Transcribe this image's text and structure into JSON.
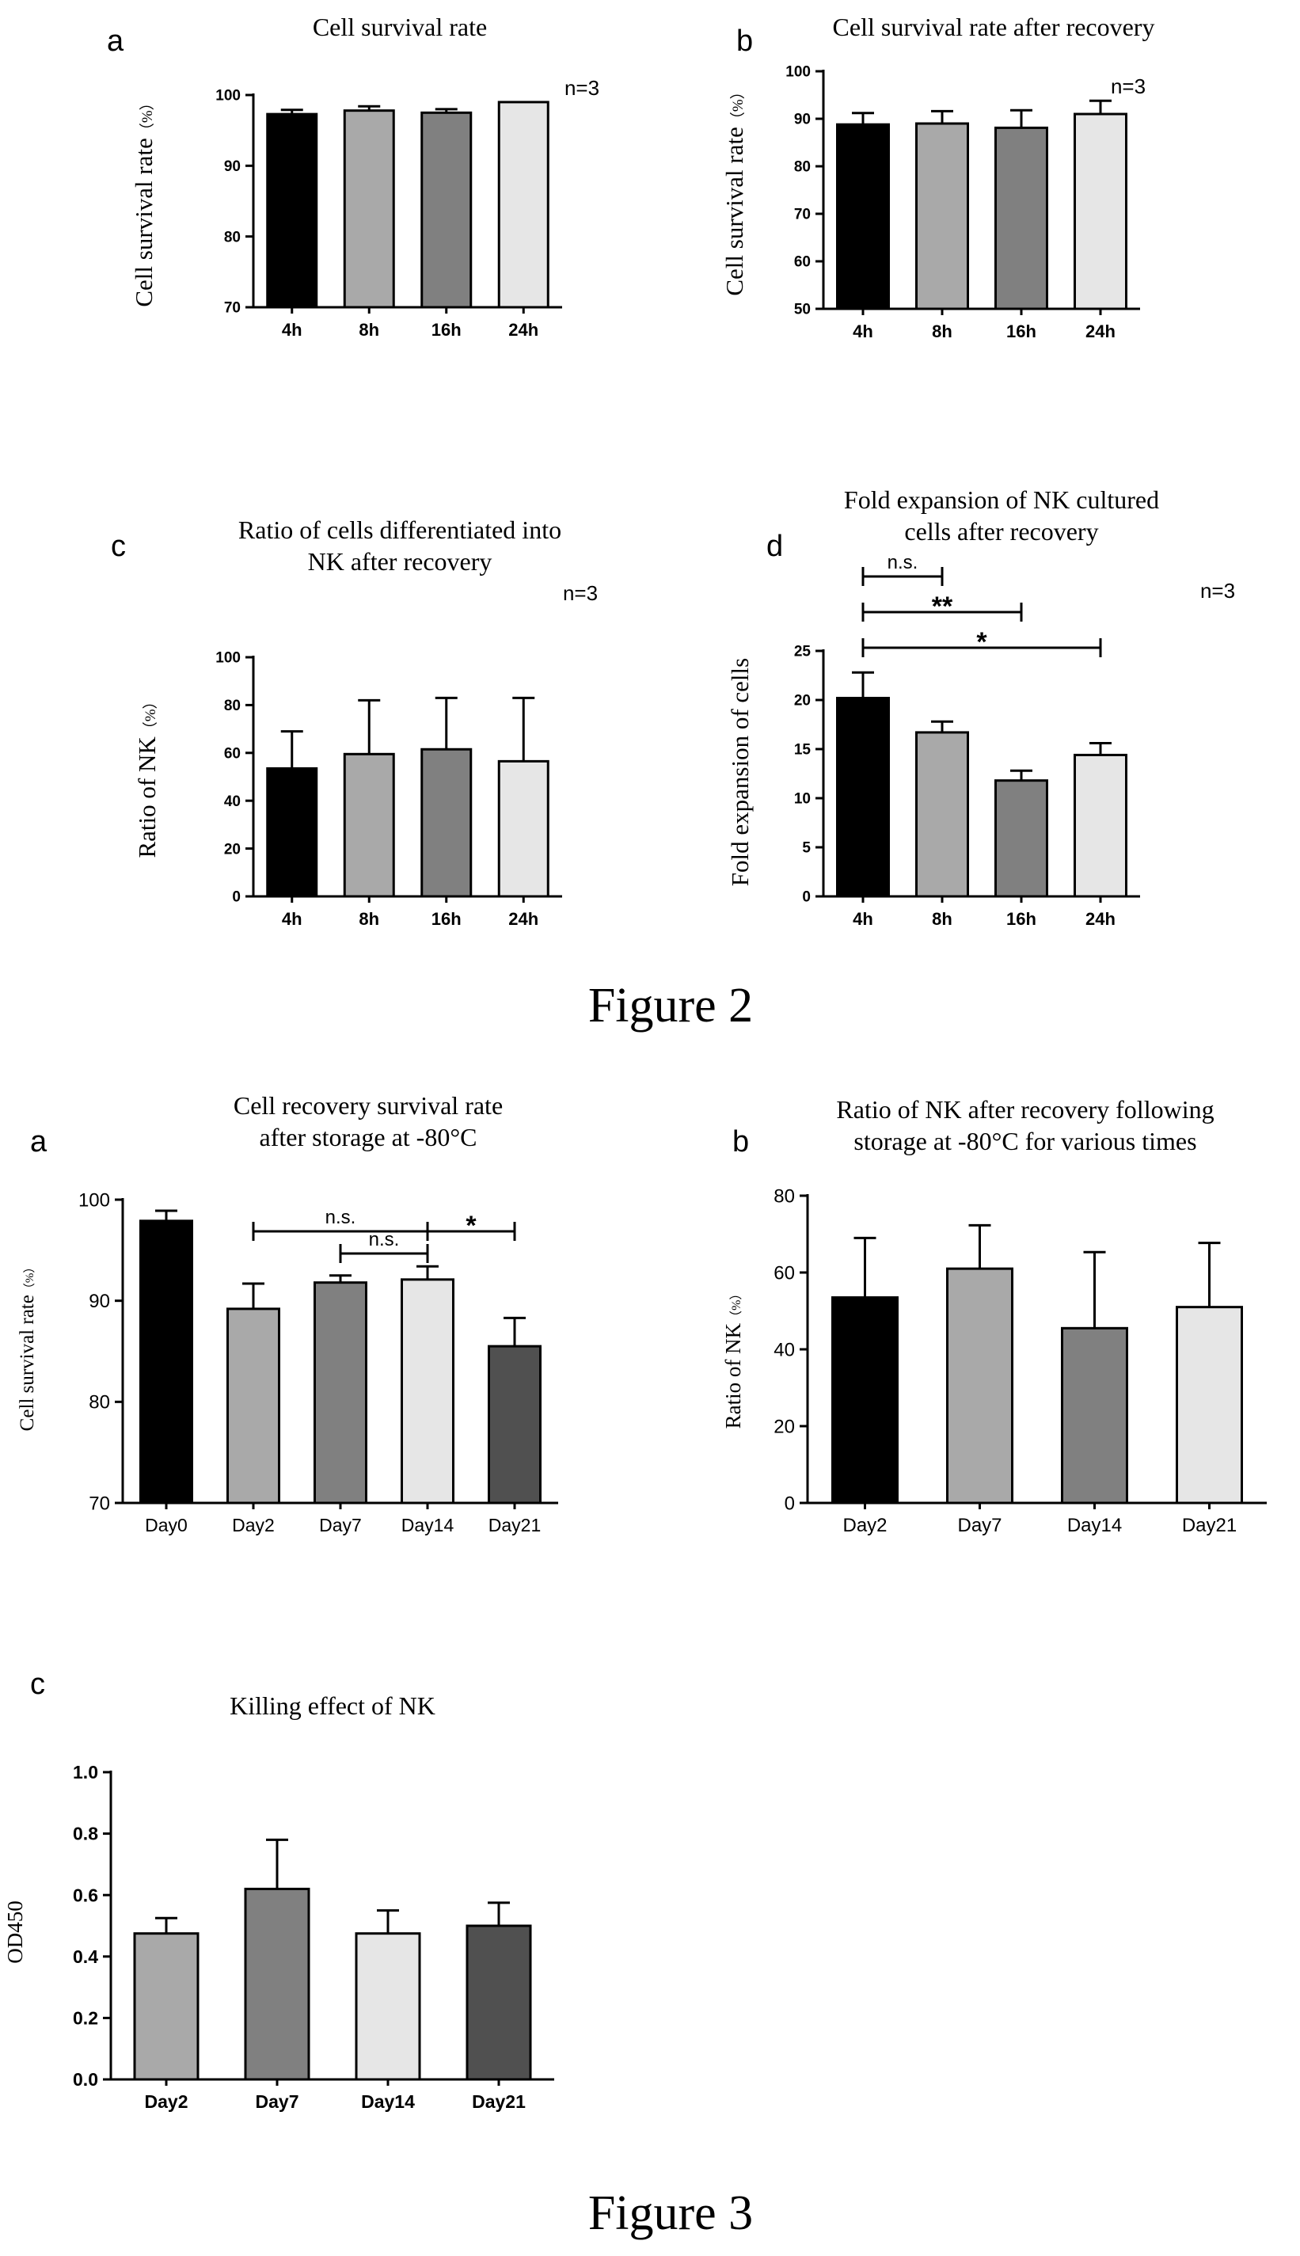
{
  "figure_captions": [
    "Figure 2",
    "Figure 3"
  ],
  "chart_data": [
    {
      "panel_letter": "a",
      "type": "bar",
      "title": [
        "Cell survival rate"
      ],
      "n_label": "n=3",
      "ylabel": "Cell survival rate",
      "ylabel_unit": "（%）",
      "categories": [
        "4h",
        "8h",
        "16h",
        "24h"
      ],
      "values": [
        97.3,
        97.8,
        97.5,
        99.0
      ],
      "errors": [
        0.6,
        0.6,
        0.5,
        0
      ],
      "ylim": [
        70,
        100
      ],
      "yticks": [
        "70",
        "80",
        "90",
        "100"
      ],
      "colors": [
        "#000000",
        "#a9a9a9",
        "#808080",
        "#e6e6e6"
      ],
      "significance": []
    },
    {
      "panel_letter": "b",
      "type": "bar",
      "title": [
        "Cell survival rate after recovery"
      ],
      "n_label": "n=3",
      "ylabel": "Cell survival rate",
      "ylabel_unit": "（%）",
      "categories": [
        "4h",
        "8h",
        "16h",
        "24h"
      ],
      "values": [
        88.8,
        89.0,
        88.1,
        91.0
      ],
      "errors": [
        2.4,
        2.6,
        3.7,
        2.8
      ],
      "ylim": [
        50,
        100
      ],
      "yticks": [
        "50",
        "60",
        "70",
        "80",
        "90",
        "100"
      ],
      "colors": [
        "#000000",
        "#a9a9a9",
        "#808080",
        "#e6e6e6"
      ],
      "significance": []
    },
    {
      "panel_letter": "c",
      "type": "bar",
      "title": [
        "Ratio of cells differentiated into",
        "NK after recovery"
      ],
      "n_label": "n=3",
      "ylabel": "Ratio of NK",
      "ylabel_unit": "（%）",
      "categories": [
        "4h",
        "8h",
        "16h",
        "24h"
      ],
      "values": [
        53.5,
        59.5,
        61.5,
        56.5
      ],
      "errors": [
        15.5,
        22.5,
        21.5,
        26.5
      ],
      "ylim": [
        0,
        100
      ],
      "yticks": [
        "0",
        "20",
        "40",
        "60",
        "80",
        "100"
      ],
      "colors": [
        "#000000",
        "#a9a9a9",
        "#808080",
        "#e6e6e6"
      ],
      "significance": []
    },
    {
      "panel_letter": "d",
      "type": "bar",
      "title": [
        "Fold expansion of NK cultured",
        "cells after recovery"
      ],
      "n_label": "n=3",
      "ylabel": "Fold expansion of cells",
      "ylabel_unit": "",
      "categories": [
        "4h",
        "8h",
        "16h",
        "24h"
      ],
      "values": [
        20.2,
        16.7,
        11.8,
        14.4
      ],
      "errors": [
        2.6,
        1.1,
        1.0,
        1.2
      ],
      "ylim": [
        0,
        25
      ],
      "yticks": [
        "0",
        "5",
        "10",
        "15",
        "20",
        "25"
      ],
      "colors": [
        "#000000",
        "#a9a9a9",
        "#808080",
        "#e6e6e6"
      ],
      "significance": [
        {
          "from": 0,
          "to": 1,
          "label": "n.s."
        },
        {
          "from": 0,
          "to": 2,
          "label": "**"
        },
        {
          "from": 0,
          "to": 3,
          "label": "*"
        }
      ]
    },
    {
      "panel_letter": "a",
      "type": "bar",
      "title": [
        "Cell recovery survival rate",
        "after storage at -80°C"
      ],
      "n_label": "",
      "ylabel": "Cell survival rate",
      "ylabel_unit": "（%）",
      "categories": [
        "Day0",
        "Day2",
        "Day7",
        "Day14",
        "Day21"
      ],
      "values": [
        97.9,
        89.2,
        91.8,
        92.1,
        85.5
      ],
      "errors": [
        1.0,
        2.5,
        0.7,
        1.3,
        2.8
      ],
      "ylim": [
        70,
        100
      ],
      "yticks": [
        "70",
        "80",
        "90",
        "100"
      ],
      "colors": [
        "#000000",
        "#a9a9a9",
        "#808080",
        "#e6e6e6",
        "#505050"
      ],
      "significance": [
        {
          "from": 1,
          "to": 3,
          "label": "n.s."
        },
        {
          "from": 2,
          "to": 3,
          "label": "n.s."
        },
        {
          "from": 3,
          "to": 4,
          "label": "*"
        }
      ]
    },
    {
      "panel_letter": "b",
      "type": "bar",
      "title": [
        "Ratio of NK after recovery following",
        "storage at -80°C for various times"
      ],
      "n_label": "",
      "ylabel": "Ratio of NK",
      "ylabel_unit": "（%）",
      "categories": [
        "Day2",
        "Day7",
        "Day14",
        "Day21"
      ],
      "values": [
        53.5,
        61.0,
        45.5,
        51.0
      ],
      "errors": [
        15.5,
        11.3,
        19.8,
        16.7
      ],
      "ylim": [
        0,
        80
      ],
      "yticks": [
        "0",
        "20",
        "40",
        "60",
        "80"
      ],
      "colors": [
        "#000000",
        "#a9a9a9",
        "#808080",
        "#e6e6e6"
      ],
      "significance": []
    },
    {
      "panel_letter": "c",
      "type": "bar",
      "title": [
        "Killing effect of NK"
      ],
      "n_label": "",
      "ylabel": "OD450",
      "ylabel_unit": "",
      "categories": [
        "Day2",
        "Day7",
        "Day14",
        "Day21"
      ],
      "values": [
        0.475,
        0.62,
        0.475,
        0.5
      ],
      "errors": [
        0.05,
        0.16,
        0.075,
        0.075
      ],
      "ylim": [
        0,
        1.0
      ],
      "yticks": [
        "0.0",
        "0.2",
        "0.4",
        "0.6",
        "0.8",
        "1.0"
      ],
      "colors": [
        "#a9a9a9",
        "#808080",
        "#e6e6e6",
        "#505050"
      ],
      "significance": []
    }
  ]
}
